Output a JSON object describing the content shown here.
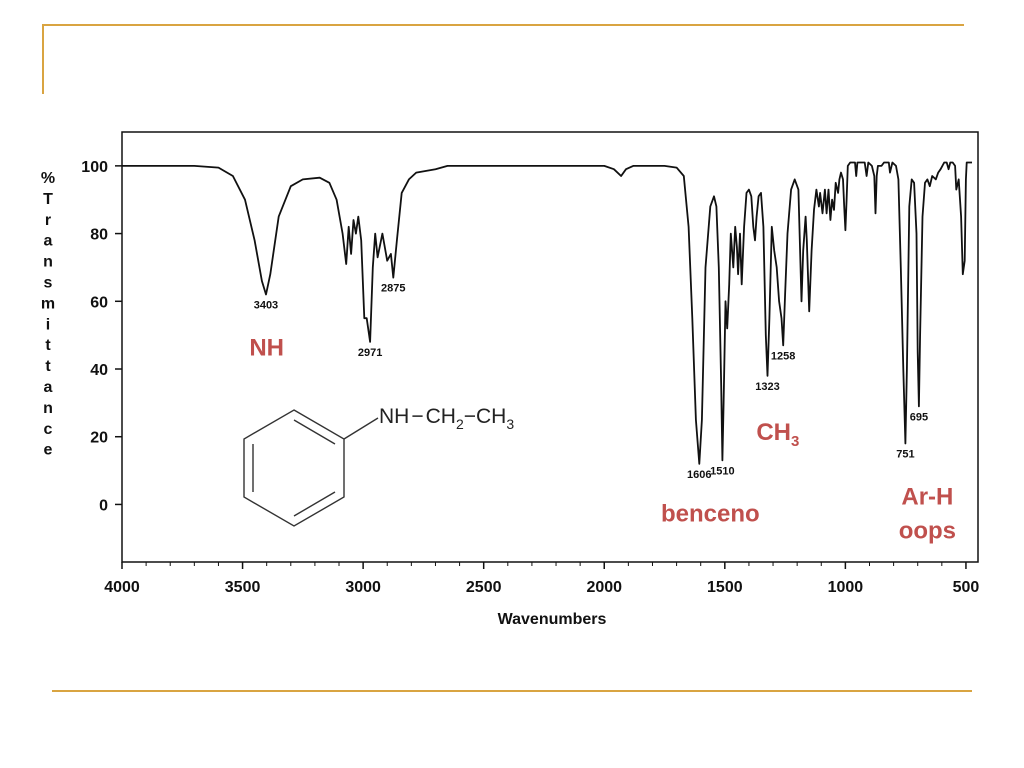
{
  "chart_data": {
    "type": "line",
    "xlabel": "Wavenumbers",
    "ylabel": "% Transmittance",
    "xlim": [
      4000,
      450
    ],
    "ylim": [
      -17,
      110
    ],
    "x_ticks": [
      4000,
      3500,
      3000,
      2500,
      2000,
      1500,
      1000,
      500
    ],
    "y_ticks": [
      0,
      20,
      40,
      60,
      80,
      100
    ],
    "grid": false,
    "series": [
      {
        "values": [
          [
            4000,
            100
          ],
          [
            3700,
            100
          ],
          [
            3600,
            99.5
          ],
          [
            3540,
            97
          ],
          [
            3490,
            90
          ],
          [
            3450,
            78
          ],
          [
            3420,
            66
          ],
          [
            3403,
            62
          ],
          [
            3385,
            68
          ],
          [
            3350,
            85
          ],
          [
            3300,
            94
          ],
          [
            3250,
            96
          ],
          [
            3180,
            96.5
          ],
          [
            3140,
            95
          ],
          [
            3110,
            90
          ],
          [
            3085,
            80
          ],
          [
            3070,
            71
          ],
          [
            3060,
            82
          ],
          [
            3050,
            74
          ],
          [
            3040,
            84
          ],
          [
            3030,
            80
          ],
          [
            3020,
            85
          ],
          [
            3008,
            78
          ],
          [
            2995,
            55
          ],
          [
            2985,
            55
          ],
          [
            2971,
            48
          ],
          [
            2960,
            70
          ],
          [
            2950,
            80
          ],
          [
            2940,
            73
          ],
          [
            2920,
            80
          ],
          [
            2900,
            72
          ],
          [
            2885,
            74
          ],
          [
            2875,
            67
          ],
          [
            2860,
            78
          ],
          [
            2840,
            92
          ],
          [
            2810,
            96
          ],
          [
            2780,
            98
          ],
          [
            2700,
            99
          ],
          [
            2650,
            100
          ],
          [
            2500,
            100
          ],
          [
            2300,
            100
          ],
          [
            2100,
            100
          ],
          [
            2000,
            100
          ],
          [
            1960,
            99
          ],
          [
            1930,
            97
          ],
          [
            1910,
            99
          ],
          [
            1880,
            100
          ],
          [
            1800,
            100
          ],
          [
            1750,
            100
          ],
          [
            1700,
            99.5
          ],
          [
            1670,
            97
          ],
          [
            1650,
            82
          ],
          [
            1635,
            55
          ],
          [
            1620,
            25
          ],
          [
            1606,
            12
          ],
          [
            1595,
            25
          ],
          [
            1580,
            70
          ],
          [
            1560,
            88
          ],
          [
            1545,
            91
          ],
          [
            1535,
            88
          ],
          [
            1525,
            70
          ],
          [
            1515,
            35
          ],
          [
            1510,
            13
          ],
          [
            1505,
            30
          ],
          [
            1497,
            60
          ],
          [
            1490,
            52
          ],
          [
            1482,
            65
          ],
          [
            1475,
            80
          ],
          [
            1465,
            70
          ],
          [
            1457,
            82
          ],
          [
            1450,
            76
          ],
          [
            1445,
            68
          ],
          [
            1437,
            80
          ],
          [
            1430,
            65
          ],
          [
            1420,
            82
          ],
          [
            1410,
            92
          ],
          [
            1400,
            93
          ],
          [
            1390,
            91
          ],
          [
            1382,
            82
          ],
          [
            1375,
            78
          ],
          [
            1368,
            85
          ],
          [
            1360,
            91
          ],
          [
            1350,
            92
          ],
          [
            1340,
            82
          ],
          [
            1330,
            50
          ],
          [
            1323,
            38
          ],
          [
            1315,
            55
          ],
          [
            1305,
            82
          ],
          [
            1295,
            75
          ],
          [
            1285,
            70
          ],
          [
            1275,
            60
          ],
          [
            1265,
            55
          ],
          [
            1258,
            47
          ],
          [
            1250,
            62
          ],
          [
            1240,
            80
          ],
          [
            1225,
            93
          ],
          [
            1210,
            96
          ],
          [
            1195,
            93
          ],
          [
            1182,
            60
          ],
          [
            1175,
            75
          ],
          [
            1165,
            85
          ],
          [
            1160,
            78
          ],
          [
            1150,
            57
          ],
          [
            1140,
            75
          ],
          [
            1130,
            87
          ],
          [
            1120,
            93
          ],
          [
            1110,
            88
          ],
          [
            1105,
            92
          ],
          [
            1095,
            86
          ],
          [
            1085,
            93
          ],
          [
            1078,
            86
          ],
          [
            1070,
            93
          ],
          [
            1062,
            84
          ],
          [
            1055,
            90
          ],
          [
            1047,
            87
          ],
          [
            1040,
            95
          ],
          [
            1030,
            92
          ],
          [
            1025,
            96
          ],
          [
            1018,
            98
          ],
          [
            1010,
            96
          ],
          [
            1005,
            88
          ],
          [
            1000,
            81
          ],
          [
            995,
            90
          ],
          [
            990,
            100
          ],
          [
            980,
            101
          ],
          [
            960,
            101
          ],
          [
            955,
            97
          ],
          [
            950,
            101
          ],
          [
            935,
            101
          ],
          [
            920,
            101
          ],
          [
            912,
            97
          ],
          [
            905,
            101
          ],
          [
            890,
            100
          ],
          [
            880,
            97
          ],
          [
            875,
            86
          ],
          [
            870,
            97
          ],
          [
            865,
            100
          ],
          [
            850,
            100
          ],
          [
            840,
            101
          ],
          [
            820,
            101
          ],
          [
            815,
            98
          ],
          [
            805,
            101
          ],
          [
            790,
            100
          ],
          [
            780,
            96
          ],
          [
            770,
            70
          ],
          [
            760,
            40
          ],
          [
            751,
            18
          ],
          [
            745,
            40
          ],
          [
            735,
            88
          ],
          [
            725,
            96
          ],
          [
            715,
            95
          ],
          [
            705,
            80
          ],
          [
            700,
            45
          ],
          [
            695,
            29
          ],
          [
            690,
            50
          ],
          [
            680,
            85
          ],
          [
            670,
            95
          ],
          [
            660,
            96
          ],
          [
            650,
            94
          ],
          [
            640,
            97
          ],
          [
            625,
            96
          ],
          [
            615,
            98
          ],
          [
            605,
            99
          ],
          [
            590,
            101
          ],
          [
            580,
            101
          ],
          [
            572,
            99
          ],
          [
            565,
            101
          ],
          [
            555,
            101
          ],
          [
            545,
            100
          ],
          [
            540,
            93
          ],
          [
            530,
            96
          ],
          [
            520,
            85
          ],
          [
            513,
            68
          ],
          [
            505,
            72
          ],
          [
            500,
            96
          ],
          [
            497,
            101
          ],
          [
            475,
            101
          ]
        ]
      }
    ],
    "peak_labels": [
      {
        "x": 3403,
        "y": 62,
        "label": "3403"
      },
      {
        "x": 2971,
        "y": 48,
        "label": "2971"
      },
      {
        "x": 2875,
        "y": 67,
        "label": "2875"
      },
      {
        "x": 1606,
        "y": 12,
        "label": "1606"
      },
      {
        "x": 1510,
        "y": 13,
        "label": "1510"
      },
      {
        "x": 1323,
        "y": 38,
        "label": "1323"
      },
      {
        "x": 1258,
        "y": 47,
        "label": "1258"
      },
      {
        "x": 751,
        "y": 18,
        "label": "751"
      },
      {
        "x": 695,
        "y": 29,
        "label": "695"
      }
    ],
    "annotations": [
      {
        "text": "NH",
        "x": 3400,
        "y": 44
      },
      {
        "text": "benceno",
        "x": 1560,
        "y": -5
      },
      {
        "text": "CH",
        "sub": "3",
        "x": 1280,
        "y": 19
      },
      {
        "text": "Ar-H",
        "x": 660,
        "y": 0
      },
      {
        "text": "oops",
        "x": 660,
        "y": -10
      }
    ],
    "structure_text": {
      "nh": "NH",
      "dash1": "−",
      "ch2": "CH",
      "ch2_sub": "2",
      "dash2": "−",
      "ch3": "CH",
      "ch3_sub": "3"
    },
    "colors": {
      "line": "#111111",
      "annotation": "#c0504d",
      "decoration": "#d9a441"
    }
  }
}
